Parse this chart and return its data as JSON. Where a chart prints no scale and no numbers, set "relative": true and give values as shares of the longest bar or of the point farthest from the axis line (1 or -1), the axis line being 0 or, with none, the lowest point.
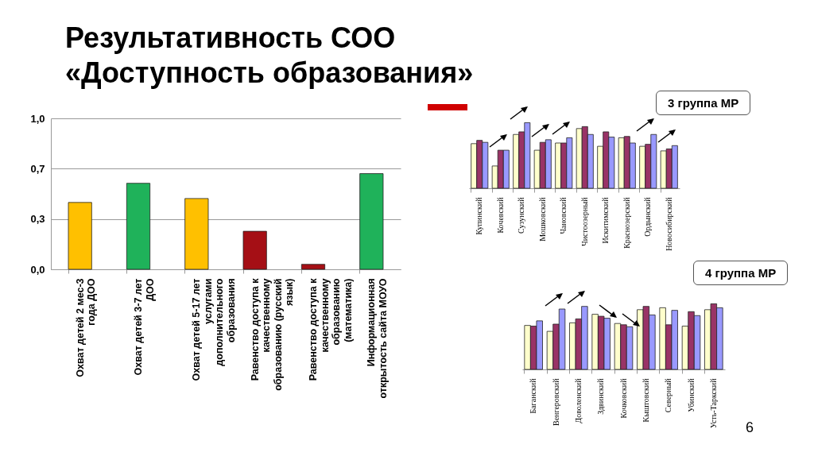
{
  "chart_data": [
    {
      "type": "bar",
      "title": "Результативность СОО «Доступность образования»",
      "categories": [
        "Охват детей 2 мес-3 года ДОО",
        "Охват детей 3-7 лет ДОО",
        "Охват детей 5-17 лет услугами дополнительного образования",
        "Равенство доступа к качественному образованию (русский язык)",
        "Равенство доступа к качественному образованию (математика)",
        "Информационная открытость сайта МОУО"
      ],
      "values": [
        0.443,
        0.57,
        0.469,
        0.252,
        0.033,
        0.634
      ],
      "colors": [
        "#ffc000",
        "#1fb25a",
        "#ffc000",
        "#a50f15",
        "#a50f15",
        "#1fb25a"
      ],
      "ylim": [
        0,
        1
      ],
      "yticks": [
        {
          "value": 0,
          "label": "0,0"
        },
        {
          "value": 0.333,
          "label": "0,3"
        },
        {
          "value": 0.667,
          "label": "0,7"
        },
        {
          "value": 1,
          "label": "1,0"
        }
      ],
      "grid": "y",
      "annotations": [
        "6"
      ]
    },
    {
      "type": "bar",
      "title": "3 группа МР",
      "relative": true,
      "categories": [
        "Купинский",
        "Кочевский",
        "Сузунский",
        "Мошковский",
        "Чановский",
        "Чистоозерный",
        "Искитимский",
        "Краснозерский",
        "Ордынский",
        "Новосибирский"
      ],
      "series": [
        {
          "color": "#ffffcc",
          "values": [
            0.68,
            0.34,
            0.82,
            0.58,
            0.69,
            0.91,
            0.64,
            0.77,
            0.64,
            0.57
          ]
        },
        {
          "color": "#993366",
          "values": [
            0.73,
            0.58,
            0.86,
            0.7,
            0.69,
            0.94,
            0.86,
            0.79,
            0.67,
            0.6
          ]
        },
        {
          "color": "#9999ff",
          "values": [
            0.7,
            0.58,
            1,
            0.74,
            0.77,
            0.82,
            0.78,
            0.69,
            0.82,
            0.65
          ]
        }
      ]
    },
    {
      "type": "bar",
      "title": "4 группа МР",
      "relative": true,
      "categories": [
        "Баганский",
        "Венгеровский",
        "Доволенский",
        "Здвинский",
        "Кочковский",
        "Кыштовский",
        "Северный",
        "Убинский",
        "Усть-Таркский"
      ],
      "series": [
        {
          "color": "#ffffcc",
          "values": [
            0.67,
            0.58,
            0.71,
            0.84,
            0.7,
            0.91,
            0.94,
            0.66,
            0.91
          ]
        },
        {
          "color": "#993366",
          "values": [
            0.66,
            0.69,
            0.77,
            0.81,
            0.68,
            0.96,
            0.68,
            0.88,
            1
          ]
        },
        {
          "color": "#9999ff",
          "values": [
            0.74,
            0.92,
            0.96,
            0.78,
            0.65,
            0.83,
            0.9,
            0.82,
            0.94
          ]
        }
      ]
    }
  ]
}
